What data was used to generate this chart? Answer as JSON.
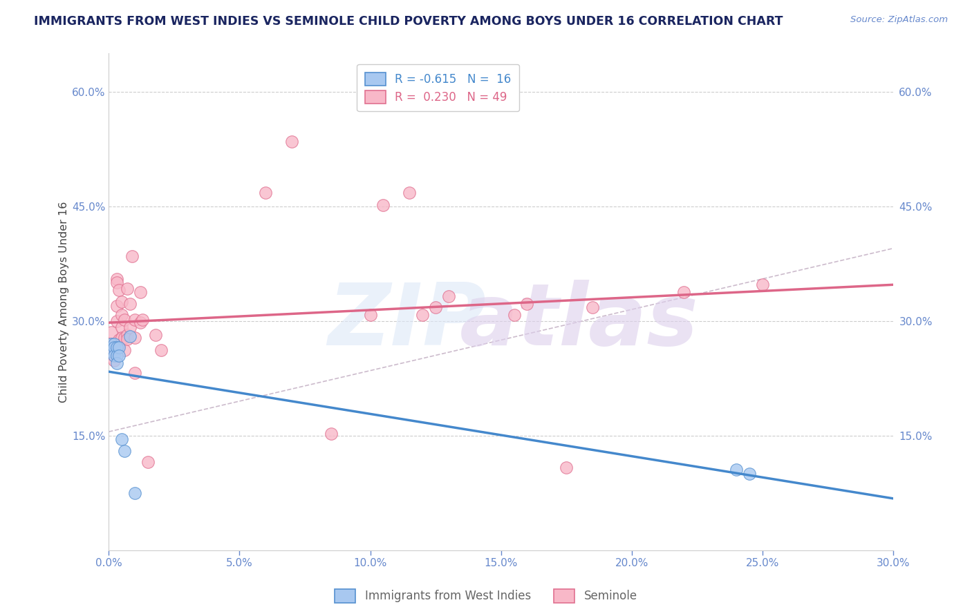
{
  "title": "IMMIGRANTS FROM WEST INDIES VS SEMINOLE CHILD POVERTY AMONG BOYS UNDER 16 CORRELATION CHART",
  "source": "Source: ZipAtlas.com",
  "ylabel": "Child Poverty Among Boys Under 16",
  "xlim": [
    0.0,
    0.3
  ],
  "ylim": [
    0.0,
    0.65
  ],
  "xtick_vals": [
    0.0,
    0.05,
    0.1,
    0.15,
    0.2,
    0.25,
    0.3
  ],
  "xtick_labels": [
    "0.0%",
    "5.0%",
    "10.0%",
    "15.0%",
    "20.0%",
    "25.0%",
    "30.0%"
  ],
  "ytick_vals": [
    0.0,
    0.15,
    0.3,
    0.45,
    0.6
  ],
  "ytick_labels": [
    "",
    "15.0%",
    "30.0%",
    "45.0%",
    "60.0%"
  ],
  "ytick_right_vals": [
    0.15,
    0.3,
    0.45,
    0.6
  ],
  "ytick_right_labels": [
    "15.0%",
    "30.0%",
    "45.0%",
    "60.0%"
  ],
  "legend_blue_r": "-0.615",
  "legend_blue_n": "16",
  "legend_pink_r": "0.230",
  "legend_pink_n": "49",
  "blue_fill": "#a8c8f0",
  "blue_edge": "#5590d0",
  "pink_fill": "#f8b8c8",
  "pink_edge": "#e07090",
  "blue_line": "#4488cc",
  "pink_line": "#dd6688",
  "dashed_line": "#ccbbcc",
  "grid_color": "#cccccc",
  "title_color": "#1a2560",
  "axis_label_color": "#6688cc",
  "ylabel_color": "#444444",
  "watermark_zip_color": "#dde8f8",
  "watermark_atlas_color": "#ddd0ec",
  "blue_scatter": [
    [
      0.001,
      0.27
    ],
    [
      0.001,
      0.26
    ],
    [
      0.002,
      0.27
    ],
    [
      0.002,
      0.265
    ],
    [
      0.002,
      0.255
    ],
    [
      0.003,
      0.265
    ],
    [
      0.003,
      0.255
    ],
    [
      0.003,
      0.245
    ],
    [
      0.004,
      0.265
    ],
    [
      0.004,
      0.255
    ],
    [
      0.005,
      0.145
    ],
    [
      0.006,
      0.13
    ],
    [
      0.008,
      0.28
    ],
    [
      0.01,
      0.075
    ],
    [
      0.24,
      0.105
    ],
    [
      0.245,
      0.1
    ]
  ],
  "pink_scatter": [
    [
      0.001,
      0.285
    ],
    [
      0.001,
      0.265
    ],
    [
      0.002,
      0.255
    ],
    [
      0.002,
      0.27
    ],
    [
      0.002,
      0.248
    ],
    [
      0.003,
      0.355
    ],
    [
      0.003,
      0.35
    ],
    [
      0.003,
      0.32
    ],
    [
      0.003,
      0.3
    ],
    [
      0.004,
      0.34
    ],
    [
      0.004,
      0.275
    ],
    [
      0.004,
      0.268
    ],
    [
      0.005,
      0.325
    ],
    [
      0.005,
      0.308
    ],
    [
      0.005,
      0.292
    ],
    [
      0.005,
      0.278
    ],
    [
      0.006,
      0.302
    ],
    [
      0.006,
      0.278
    ],
    [
      0.006,
      0.262
    ],
    [
      0.007,
      0.342
    ],
    [
      0.007,
      0.282
    ],
    [
      0.007,
      0.276
    ],
    [
      0.008,
      0.322
    ],
    [
      0.008,
      0.292
    ],
    [
      0.009,
      0.385
    ],
    [
      0.01,
      0.302
    ],
    [
      0.01,
      0.278
    ],
    [
      0.01,
      0.232
    ],
    [
      0.012,
      0.338
    ],
    [
      0.012,
      0.298
    ],
    [
      0.013,
      0.302
    ],
    [
      0.015,
      0.115
    ],
    [
      0.018,
      0.282
    ],
    [
      0.02,
      0.262
    ],
    [
      0.06,
      0.468
    ],
    [
      0.07,
      0.535
    ],
    [
      0.085,
      0.152
    ],
    [
      0.1,
      0.308
    ],
    [
      0.105,
      0.452
    ],
    [
      0.115,
      0.468
    ],
    [
      0.12,
      0.308
    ],
    [
      0.125,
      0.318
    ],
    [
      0.13,
      0.332
    ],
    [
      0.155,
      0.308
    ],
    [
      0.16,
      0.322
    ],
    [
      0.175,
      0.108
    ],
    [
      0.185,
      0.318
    ],
    [
      0.22,
      0.338
    ],
    [
      0.25,
      0.348
    ]
  ],
  "blue_trend_x": [
    0.0,
    0.3
  ],
  "blue_trend_y": [
    0.268,
    0.0
  ],
  "pink_trend_x": [
    0.0,
    0.3
  ],
  "pink_trend_y": [
    0.248,
    0.358
  ],
  "dashed_trend_x": [
    0.0,
    0.3
  ],
  "dashed_trend_y": [
    0.155,
    0.395
  ]
}
